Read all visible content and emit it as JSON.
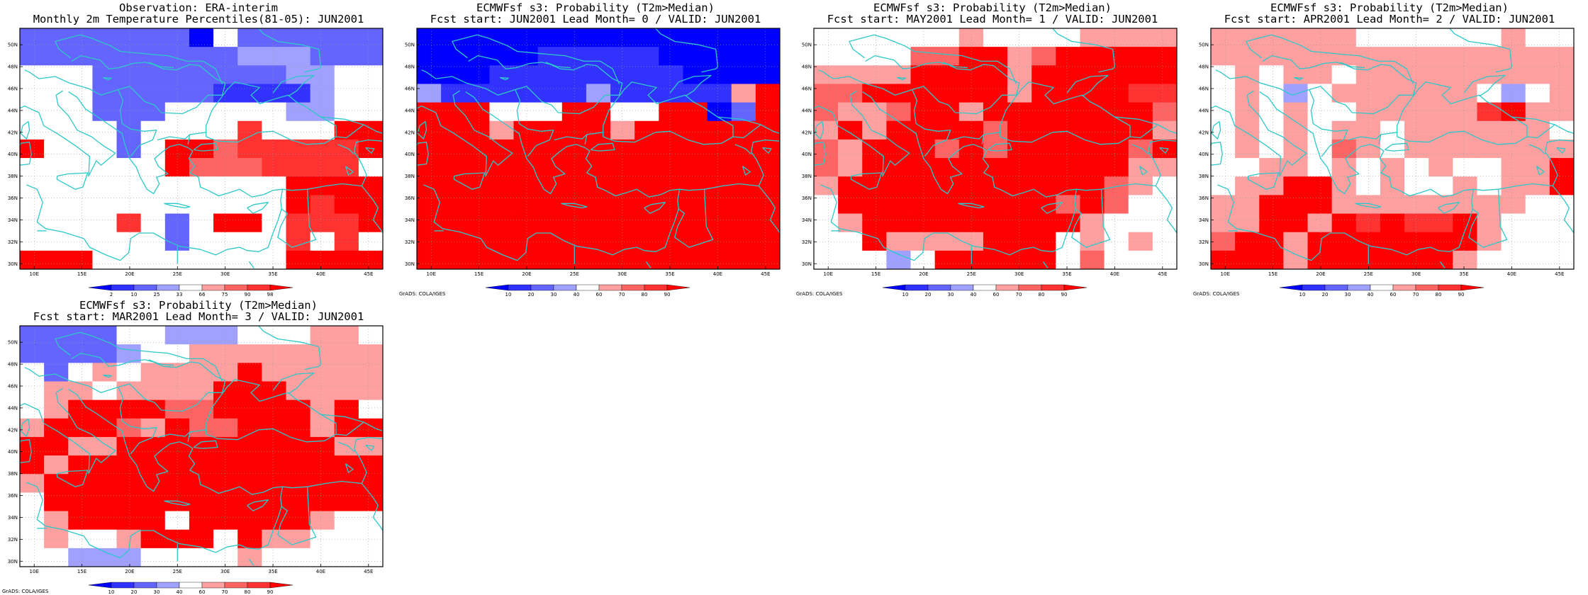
{
  "colors": {
    "blue_scale": [
      "#0000ff",
      "#3232ff",
      "#6464ff",
      "#a0a0ff"
    ],
    "white": "#ffffff",
    "red_scale": [
      "#ffa0a0",
      "#ff6464",
      "#ff3232",
      "#ff0000"
    ],
    "coast": "#2ec8c8",
    "grid_dots": "#999999"
  },
  "map": {
    "lat_ticks": [
      "30N",
      "32N",
      "34N",
      "36N",
      "38N",
      "40N",
      "42N",
      "44N",
      "46N",
      "48N",
      "50N"
    ],
    "lon_ticks": [
      "10E",
      "15E",
      "20E",
      "25E",
      "30E",
      "35E",
      "40E",
      "45E"
    ],
    "credit": "GrADS: COLA/IGES"
  },
  "panels": [
    {
      "title1": "Observation: ERA-interim",
      "title2": "Monthly 2m Temperature Percentiles(81-05): JUN2001",
      "legend_labels": [
        "2",
        "10",
        "25",
        "33",
        "66",
        "75",
        "90",
        "98"
      ],
      "grid": [
        "bbbbbbbAabbbbbb",
        "bbbbbbbbbcccbbb",
        "wwwbbbbbbbbccww",
        "wwwbbbbbBBBBcww",
        "wwwbbbwwwwwccww",
        "wwwwbwwww3wwwqq",
        "qwwwbwqq233333q",
        "wwwwwwq2223333w",
        "wwwwwwwwwwwqqqq",
        "wwwwwwwwwwwq3qq",
        "wwww3wbwqqw333q",
        "wwwwwwbwwww3w3w",
        "qqqwwwwwwwwqqqq"
      ]
    },
    {
      "title1": "ECMWFsf s3: Probability (T2m>Median)",
      "title2": "Fcst start: JUN2001  Lead Month= 0 / VALID: JUN2001",
      "legend_labels": [
        "10",
        "20",
        "30",
        "40",
        "60",
        "70",
        "80",
        "90"
      ],
      "grid": [
        "AAAAAAAAAAAAAAA",
        "AAAAABBBBBAAAAA",
        "AAABBBBBBBBAAAA",
        "cBBBBBBcBBBBB1q",
        "qqqwwwqqwwqqAbq",
        "qqq1qqqq1qqqqqq",
        "qqqqqqqqqqqqqqq",
        "qqqqqqqqqqqqqqq",
        "qqqqqqqqqqqqqqq",
        "qqqqqqqqqqqqqqq",
        "qqqqqqqqqqqqqqq",
        "qqqqqqqqqqqqqqq",
        "qqqqqqqqqqqqqqq"
      ]
    },
    {
      "title1": "ECMWFsf s3: Probability (T2m>Median)",
      "title2": "Fcst start: MAY2001  Lead Month= 1 / VALID: JUN2001",
      "legend_labels": [
        "10",
        "20",
        "30",
        "40",
        "60",
        "70",
        "80",
        "90"
      ],
      "grid": [
        "wwwwww1wwww1111",
        "wwww22qq12qqqqq",
        "1111qqqq1qqqqqq",
        "22qqqqqq1qqqq33",
        "2112qq1qqqqqqq2",
        "1q1qqqq2qqqqqq1",
        "21qqq2q2qqqqq2q",
        "21qqqqqqqqqqq11",
        "1qqqqqqqqqqq21w",
        "wqqqqqqqqq2q2ww",
        "w1qqqqqqqqq1www",
        "wwq1111qqqw1w1w",
        "wwwcwqqqqqw2www"
      ]
    },
    {
      "title1": "ECMWFsf s3: Probability (T2m>Median)",
      "title2": "Fcst start: APR2001  Lead Month= 2 / VALID: JUN2001",
      "legend_labels": [
        "10",
        "20",
        "30",
        "40",
        "60",
        "70",
        "80",
        "90"
      ],
      "grid": [
        "111111wwwwww1ww",
        "111111111111111",
        "w1w11w111111111",
        "w1wcw111111wcw1",
        "w1w1ww111113q11",
        "w1w1w11w111111w",
        "w1w1w21w1111111",
        "ww11w1w1w1ww11q",
        "w11qq1w1ww1w11q",
        "11qqq11111111ww",
        "11qq1q3q33q1www",
        "2qq1qqqqqqq1www",
        "qqq1qqqqqq1wwww"
      ]
    },
    {
      "title1": "ECMWFsf s3: Probability (T2m>Median)",
      "title2": "Fcst start: MAR2001  Lead Month= 3 / VALID: JUN2001",
      "legend_labels": [
        "10",
        "20",
        "30",
        "40",
        "60",
        "70",
        "80",
        "90"
      ],
      "grid": [
        "bbbbwwcccwww11w",
        "bbbbcww11111111",
        "wbw1w1111q11111",
        "w11w1111qqq1111",
        "w1qqqq22qqqq1qw",
        "1qqq21q22qqq1qq",
        "qq11qqqqqqqqq11",
        "q1qqqqqqqqqqqqq",
        "1qqqqqqqqqqqqqq",
        "wqqqqqqqqqqqqqq",
        "w1qqqqwqqqqq1ww",
        "w1ww1qqqwq11www",
        "wwcccwwww1wwwww"
      ]
    }
  ]
}
